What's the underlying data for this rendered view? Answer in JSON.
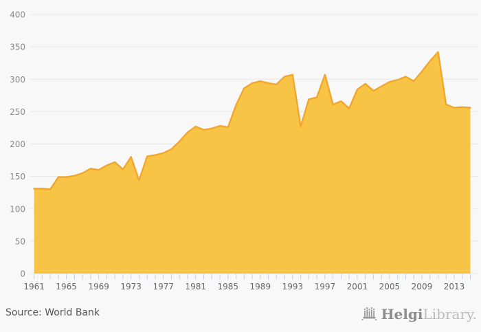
{
  "chart_data": {
    "type": "area",
    "title": "",
    "xlabel": "",
    "ylabel": "",
    "x": [
      1961,
      1962,
      1963,
      1964,
      1965,
      1966,
      1967,
      1968,
      1969,
      1970,
      1971,
      1972,
      1973,
      1974,
      1975,
      1976,
      1977,
      1978,
      1979,
      1980,
      1981,
      1982,
      1983,
      1984,
      1985,
      1986,
      1987,
      1988,
      1989,
      1990,
      1991,
      1992,
      1993,
      1994,
      1995,
      1996,
      1997,
      1998,
      1999,
      2000,
      2001,
      2002,
      2003,
      2004,
      2005,
      2006,
      2007,
      2008,
      2009,
      2010,
      2011,
      2012,
      2013,
      2014,
      2015
    ],
    "values": [
      131,
      131,
      130,
      149,
      149,
      151,
      155,
      162,
      160,
      167,
      172,
      161,
      180,
      144,
      181,
      183,
      186,
      192,
      204,
      218,
      227,
      222,
      224,
      228,
      226,
      260,
      286,
      294,
      297,
      294,
      292,
      304,
      307,
      227,
      269,
      272,
      307,
      261,
      266,
      255,
      284,
      293,
      282,
      289,
      296,
      299,
      304,
      297,
      312,
      328,
      342,
      261,
      256,
      257,
      256
    ],
    "ylim": [
      0,
      400
    ],
    "ytick_step": 50,
    "ytick_labels": [
      "0",
      "50",
      "100",
      "150",
      "200",
      "250",
      "300",
      "350",
      "400"
    ],
    "xtick_labeled_years": [
      1961,
      1965,
      1969,
      1973,
      1977,
      1981,
      1985,
      1989,
      1993,
      1997,
      2001,
      2005,
      2009,
      2013
    ],
    "grid": "horizontal",
    "legend": "none"
  },
  "footer": {
    "source_label": "Source: World Bank"
  },
  "logo": {
    "name_bold": "Helgi",
    "name_light": "Library."
  },
  "colors": {
    "background": "#f8f8f8",
    "area_fill": "#f8c445",
    "area_line": "#f0a72c",
    "gridline": "#e7e7e7",
    "tick": "#c9cede",
    "y_label": "#8a8a8a",
    "x_label": "#666666",
    "source_text": "#555555",
    "logo_icon": "#9a9a9a",
    "logo_dark": "#8c8c8c",
    "logo_light": "#bcbcbc"
  }
}
